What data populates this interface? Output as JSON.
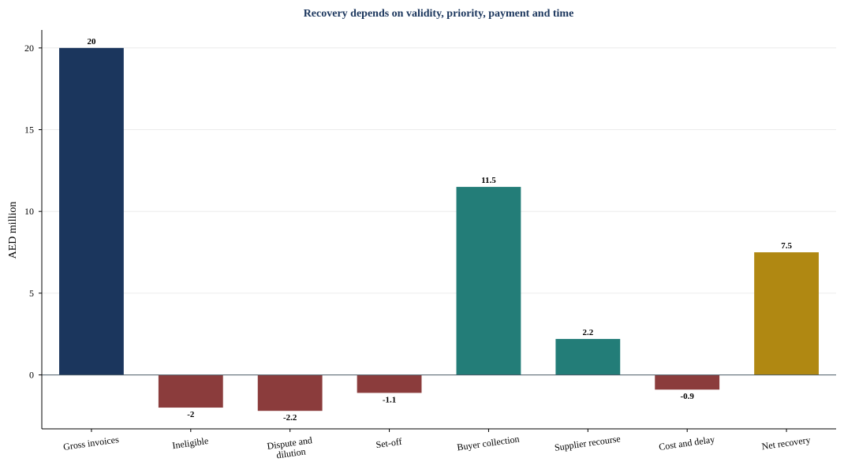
{
  "chart_data": {
    "type": "bar",
    "title": "Recovery depends on validity, priority, payment and time",
    "ylabel": "AED million",
    "xlabel": "",
    "ylim": [
      -3.3,
      21.1
    ],
    "yticks": [
      0,
      5,
      10,
      15,
      20
    ],
    "grid": "horizontal",
    "categories": [
      [
        "Gross invoices"
      ],
      [
        "Ineligible"
      ],
      [
        "Dispute and",
        "dilution"
      ],
      [
        "Set-off"
      ],
      [
        "Buyer collection"
      ],
      [
        "Supplier recourse"
      ],
      [
        "Cost and delay"
      ],
      [
        "Net recovery"
      ]
    ],
    "values": [
      20,
      -2,
      -2.2,
      -1.1,
      11.5,
      2.2,
      -0.9,
      7.5
    ],
    "value_labels": [
      "20",
      "-2",
      "-2.2",
      "-1.1",
      "11.5",
      "2.2",
      "-0.9",
      "7.5"
    ],
    "colors": [
      "#1b365d",
      "#8b3c3c",
      "#8b3c3c",
      "#8b3c3c",
      "#237d78",
      "#237d78",
      "#8b3c3c",
      "#b08812"
    ]
  }
}
